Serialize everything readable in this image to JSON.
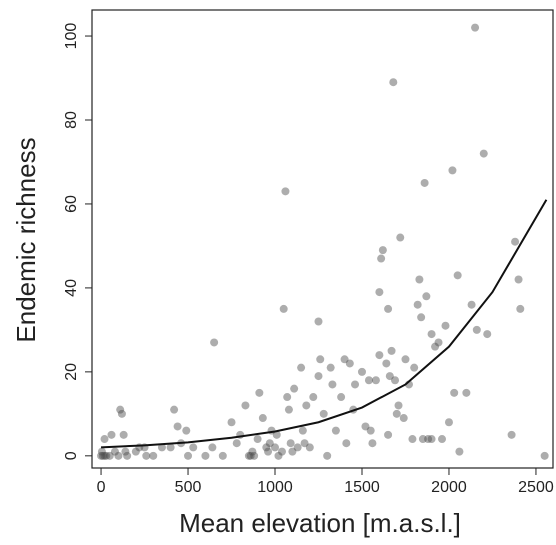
{
  "chart_data": {
    "type": "scatter",
    "x_label": "Mean elevation [m.a.s.l.]",
    "y_label": "Endemic richness",
    "xlim": [
      -52,
      2598
    ],
    "ylim": [
      -2.9,
      106.2
    ],
    "xticks": [
      0,
      500,
      1000,
      1500,
      2000,
      2500
    ],
    "yticks": [
      0,
      20,
      40,
      60,
      80,
      100
    ],
    "points": {
      "color": "#4a4a4a",
      "x": [
        0,
        10,
        20,
        30,
        50,
        5,
        20,
        60,
        80,
        100,
        110,
        120,
        130,
        140,
        150,
        200,
        220,
        250,
        260,
        300,
        350,
        400,
        420,
        440,
        460,
        490,
        500,
        530,
        600,
        640,
        650,
        700,
        750,
        780,
        800,
        830,
        850,
        860,
        870,
        880,
        900,
        910,
        930,
        950,
        960,
        970,
        980,
        1000,
        1010,
        1020,
        1040,
        1050,
        1060,
        1070,
        1080,
        1090,
        1100,
        1110,
        1130,
        1150,
        1160,
        1170,
        1180,
        1200,
        1220,
        1250,
        1250,
        1260,
        1280,
        1300,
        1320,
        1330,
        1350,
        1380,
        1400,
        1410,
        1430,
        1450,
        1460,
        1500,
        1520,
        1540,
        1550,
        1560,
        1580,
        1600,
        1600,
        1610,
        1620,
        1640,
        1650,
        1650,
        1660,
        1670,
        1680,
        1690,
        1700,
        1710,
        1720,
        1740,
        1750,
        1770,
        1790,
        1800,
        1820,
        1830,
        1840,
        1850,
        1860,
        1870,
        1880,
        1900,
        1900,
        1920,
        1940,
        1960,
        1980,
        2000,
        2020,
        2030,
        2050,
        2060,
        2100,
        2130,
        2150,
        2160,
        2200,
        2220,
        2360,
        2380,
        2400,
        2410,
        2550
      ],
      "y": [
        0,
        0,
        0,
        0,
        0,
        1,
        4,
        5,
        1,
        0,
        11,
        10,
        5,
        1,
        0,
        1,
        2,
        2,
        0,
        0,
        2,
        2,
        11,
        7,
        3,
        6,
        0,
        2,
        0,
        2,
        27,
        0,
        8,
        3,
        5,
        12,
        0,
        0,
        1,
        0,
        4,
        15,
        9,
        2,
        1,
        3,
        6,
        2,
        5,
        0,
        1,
        35,
        63,
        14,
        11,
        3,
        1,
        16,
        2,
        21,
        6,
        3,
        12,
        2,
        14,
        32,
        19,
        23,
        10,
        0,
        21,
        17,
        6,
        14,
        23,
        3,
        22,
        11,
        17,
        20,
        7,
        18,
        6,
        3,
        18,
        39,
        24,
        47,
        49,
        22,
        5,
        35,
        19,
        25,
        89,
        18,
        10,
        12,
        52,
        9,
        23,
        17,
        4,
        21,
        36,
        42,
        33,
        4,
        65,
        38,
        4,
        4,
        29,
        26,
        27,
        4,
        31,
        8,
        68,
        15,
        43,
        1,
        15,
        36,
        102,
        30,
        72,
        29,
        5,
        51,
        42,
        35,
        0
      ]
    },
    "fit": {
      "color": "#111111",
      "x": [
        0,
        250,
        500,
        750,
        1000,
        1250,
        1500,
        1750,
        2000,
        2250,
        2560
      ],
      "y": [
        2,
        2.5,
        3.2,
        4.3,
        5.8,
        8,
        11.5,
        17,
        26,
        39,
        61
      ]
    }
  }
}
